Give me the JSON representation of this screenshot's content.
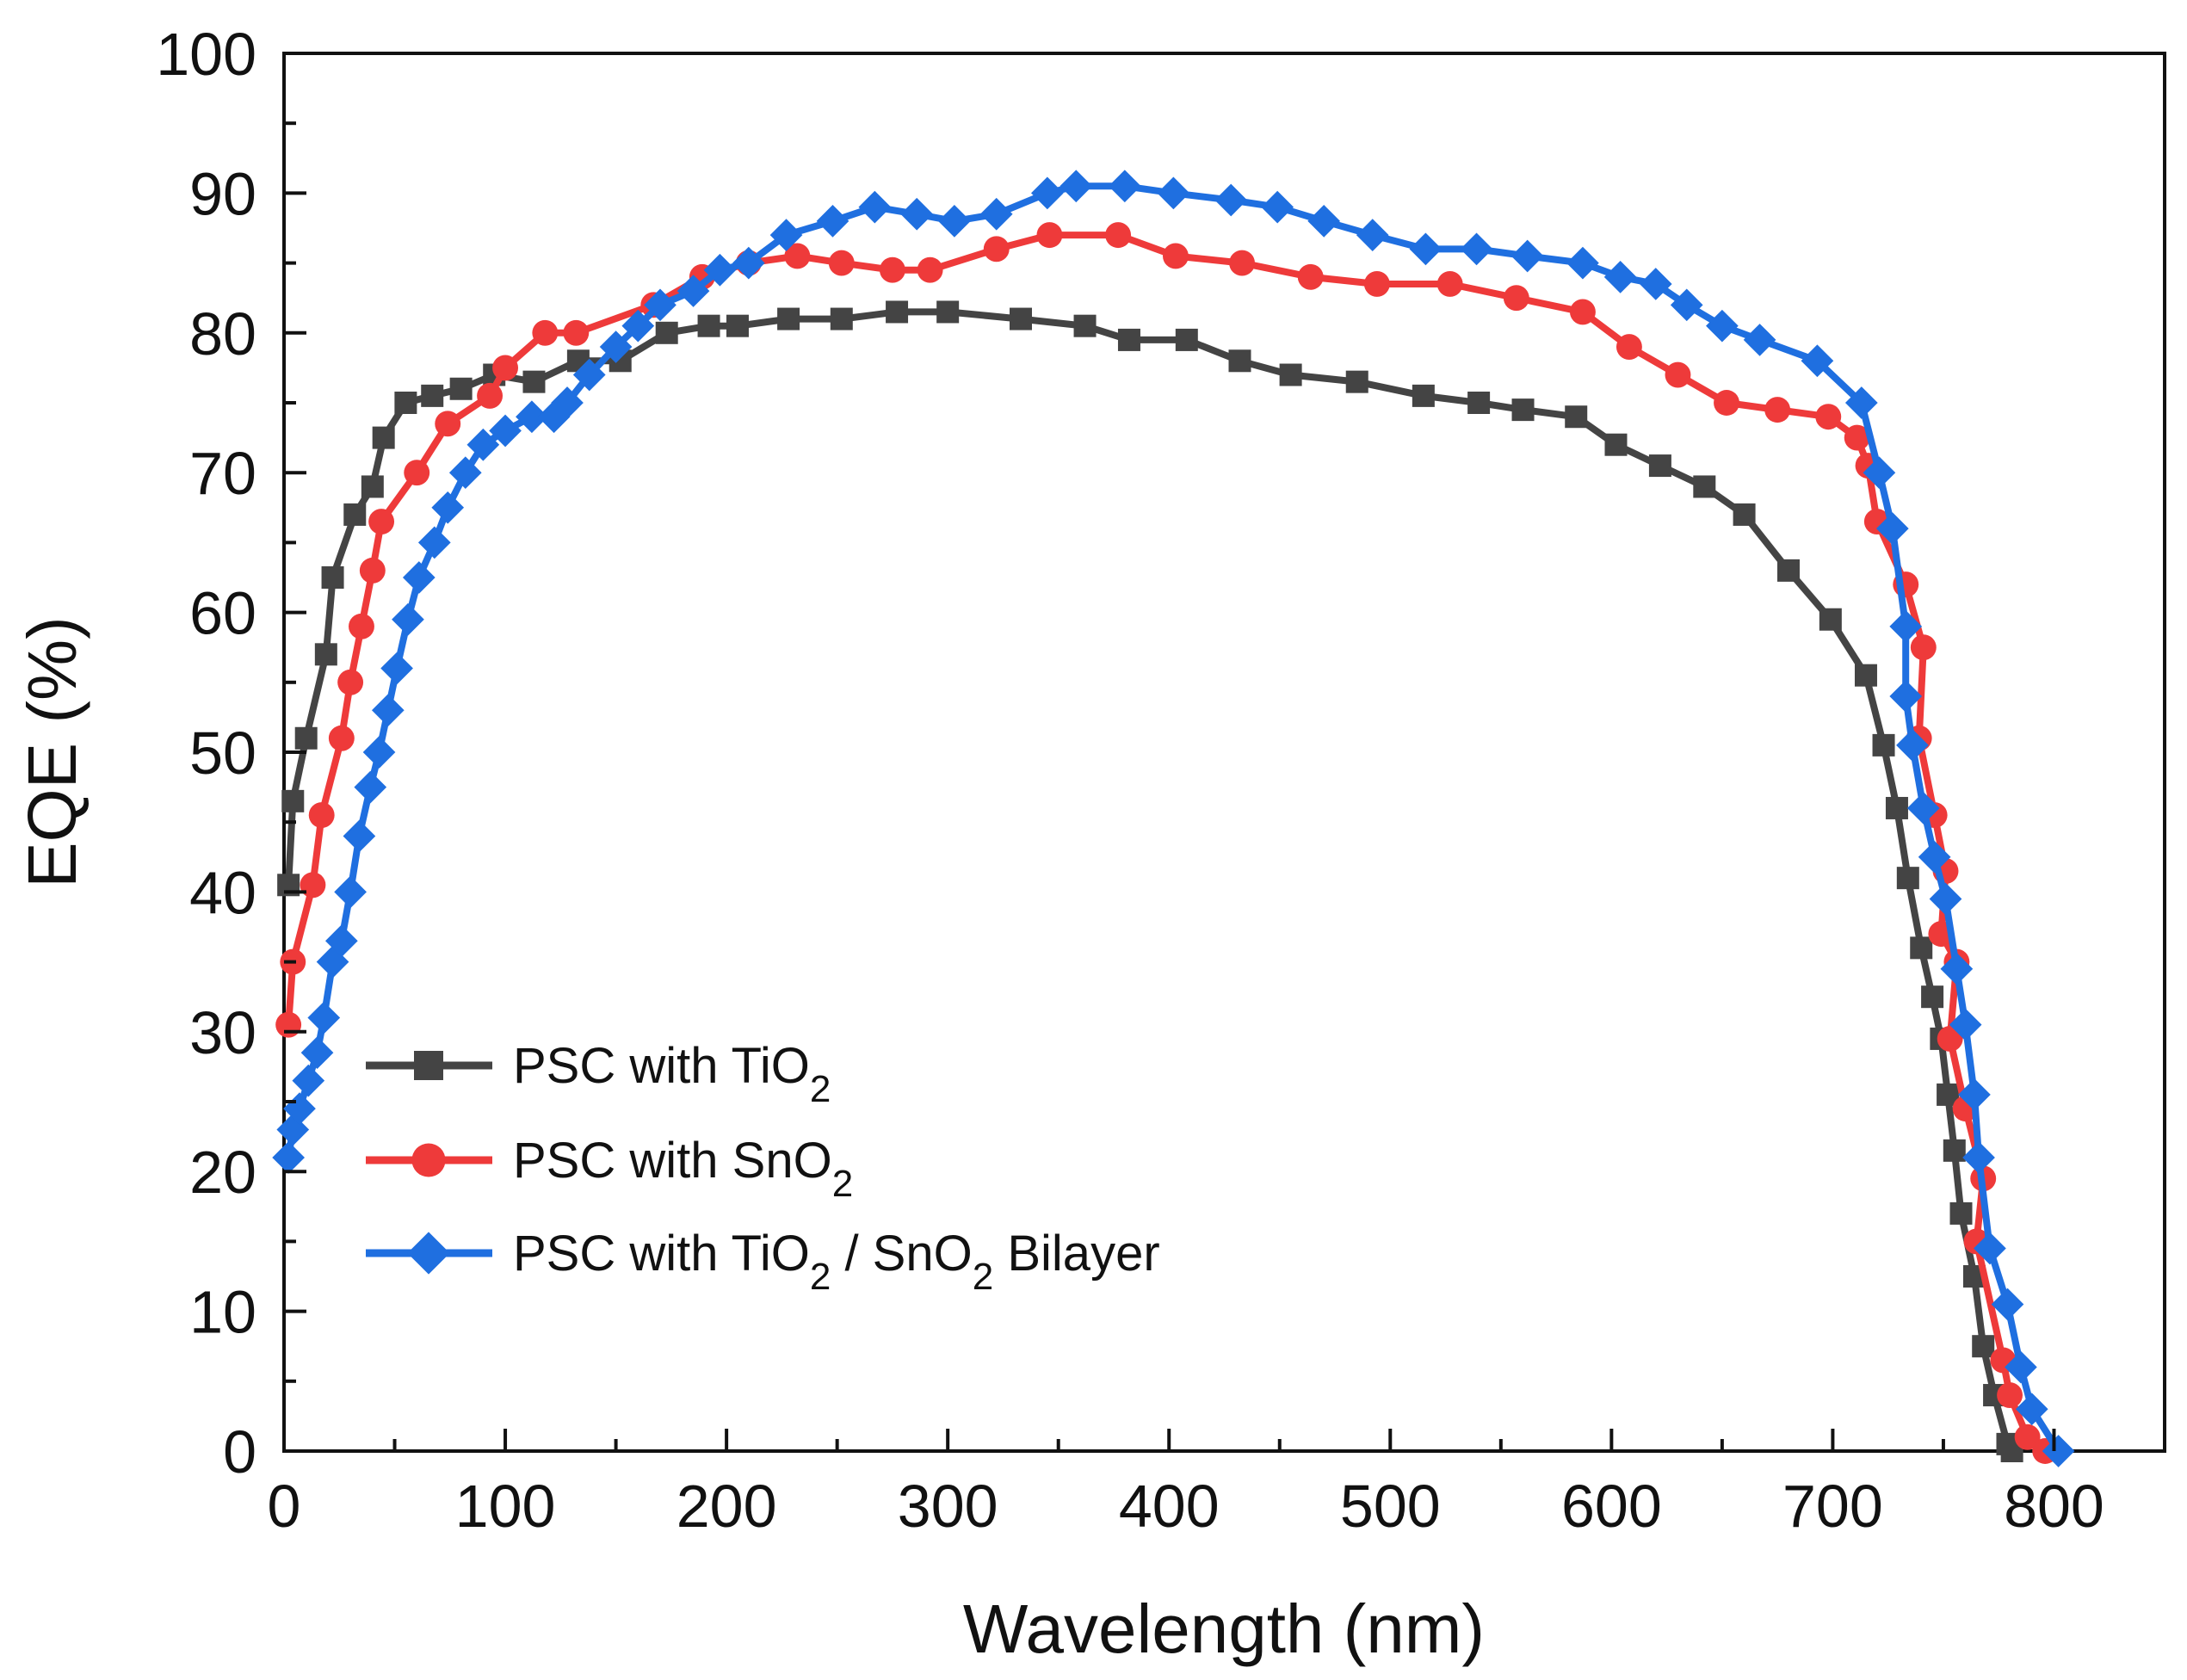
{
  "chart_data": {
    "type": "line",
    "xlabel": "Wavelength (nm)",
    "ylabel": "EQE (%)",
    "xlim": [
      0,
      850
    ],
    "ylim": [
      0,
      100
    ],
    "xticks": [
      0,
      100,
      200,
      300,
      400,
      500,
      600,
      700,
      800
    ],
    "yticks": [
      0,
      10,
      20,
      30,
      40,
      50,
      60,
      70,
      80,
      90,
      100
    ],
    "x_minor_step": 50,
    "y_minor_step": 5,
    "grid": false,
    "legend_position": "bottom-left",
    "series": [
      {
        "legend_text": "PSC with TiO",
        "legend_parts": [
          {
            "text": "PSC with TiO",
            "sub": false
          },
          {
            "text": "2",
            "sub": true
          }
        ],
        "marker": "square",
        "color": "#444444",
        "points": [
          [
            2,
            40.5
          ],
          [
            4,
            46.5
          ],
          [
            10,
            51
          ],
          [
            19,
            57
          ],
          [
            22,
            62.5
          ],
          [
            32,
            67
          ],
          [
            40,
            69
          ],
          [
            45,
            72.5
          ],
          [
            55,
            75
          ],
          [
            67,
            75.5
          ],
          [
            80,
            76
          ],
          [
            95,
            77
          ],
          [
            113,
            76.5
          ],
          [
            133,
            78
          ],
          [
            152,
            78
          ],
          [
            173,
            80
          ],
          [
            192,
            80.5
          ],
          [
            205,
            80.5
          ],
          [
            228,
            81
          ],
          [
            252,
            81
          ],
          [
            277,
            81.5
          ],
          [
            300,
            81.5
          ],
          [
            333,
            81
          ],
          [
            362,
            80.5
          ],
          [
            382,
            79.5
          ],
          [
            408,
            79.5
          ],
          [
            432,
            78
          ],
          [
            455,
            77
          ],
          [
            485,
            76.5
          ],
          [
            515,
            75.5
          ],
          [
            540,
            75
          ],
          [
            560,
            74.5
          ],
          [
            584,
            74
          ],
          [
            602,
            72
          ],
          [
            622,
            70.5
          ],
          [
            642,
            69
          ],
          [
            660,
            67
          ],
          [
            680,
            63
          ],
          [
            699,
            59.5
          ],
          [
            715,
            55.5
          ],
          [
            723,
            50.5
          ],
          [
            729,
            46
          ],
          [
            734,
            41
          ],
          [
            740,
            36
          ],
          [
            745,
            32.5
          ],
          [
            749,
            29.5
          ],
          [
            752,
            25.5
          ],
          [
            755,
            21.5
          ],
          [
            758,
            17
          ],
          [
            764,
            12.5
          ],
          [
            768,
            7.5
          ],
          [
            773,
            4
          ],
          [
            779,
            0.5
          ],
          [
            781,
            0
          ]
        ]
      },
      {
        "legend_text": "PSC with SnO",
        "legend_parts": [
          {
            "text": "PSC with SnO",
            "sub": false
          },
          {
            "text": "2",
            "sub": true
          }
        ],
        "marker": "circle",
        "color": "#ee3a3a",
        "points": [
          [
            2,
            30.5
          ],
          [
            4,
            35
          ],
          [
            13,
            40.5
          ],
          [
            17,
            45.5
          ],
          [
            26,
            51
          ],
          [
            30,
            55
          ],
          [
            35,
            59
          ],
          [
            40,
            63
          ],
          [
            44,
            66.5
          ],
          [
            60,
            70
          ],
          [
            74,
            73.5
          ],
          [
            93,
            75.5
          ],
          [
            100,
            77.5
          ],
          [
            118,
            80
          ],
          [
            132,
            80
          ],
          [
            167,
            82
          ],
          [
            189,
            84
          ],
          [
            210,
            85
          ],
          [
            232,
            85.5
          ],
          [
            252,
            85
          ],
          [
            275,
            84.5
          ],
          [
            292,
            84.5
          ],
          [
            322,
            86
          ],
          [
            346,
            87
          ],
          [
            377,
            87
          ],
          [
            403,
            85.5
          ],
          [
            433,
            85
          ],
          [
            464,
            84
          ],
          [
            494,
            83.5
          ],
          [
            527,
            83.5
          ],
          [
            557,
            82.5
          ],
          [
            587,
            81.5
          ],
          [
            608,
            79
          ],
          [
            630,
            77
          ],
          [
            652,
            75
          ],
          [
            675,
            74.5
          ],
          [
            698,
            74
          ],
          [
            711,
            72.5
          ],
          [
            716,
            70.5
          ],
          [
            720,
            66.5
          ],
          [
            733,
            62
          ],
          [
            741,
            57.5
          ],
          [
            739,
            51
          ],
          [
            746,
            45.5
          ],
          [
            751,
            41.5
          ],
          [
            749,
            37
          ],
          [
            756,
            35
          ],
          [
            753,
            29.5
          ],
          [
            760,
            24.5
          ],
          [
            768,
            19.5
          ],
          [
            765,
            15
          ],
          [
            777,
            6.5
          ],
          [
            780,
            4
          ],
          [
            788,
            1
          ],
          [
            796,
            0
          ]
        ]
      },
      {
        "legend_text": "PSC with TiO / SnO Bilayer",
        "legend_parts": [
          {
            "text": "PSC with TiO",
            "sub": false
          },
          {
            "text": "2",
            "sub": true
          },
          {
            "text": " / SnO",
            "sub": false
          },
          {
            "text": "2",
            "sub": true
          },
          {
            "text": " Bilayer",
            "sub": false
          }
        ],
        "marker": "diamond",
        "color": "#1f6fe0",
        "points": [
          [
            2,
            21
          ],
          [
            4,
            23
          ],
          [
            7,
            24.5
          ],
          [
            11,
            26.5
          ],
          [
            15,
            28.5
          ],
          [
            18,
            31
          ],
          [
            22,
            35
          ],
          [
            26,
            36.5
          ],
          [
            30,
            40
          ],
          [
            34,
            44
          ],
          [
            39,
            47.5
          ],
          [
            43,
            50
          ],
          [
            47,
            53
          ],
          [
            51,
            56
          ],
          [
            56,
            59.5
          ],
          [
            61,
            62.5
          ],
          [
            68,
            65
          ],
          [
            74,
            67.5
          ],
          [
            82,
            70
          ],
          [
            90,
            72
          ],
          [
            100,
            73
          ],
          [
            112,
            74
          ],
          [
            122,
            74
          ],
          [
            128,
            75
          ],
          [
            138,
            77
          ],
          [
            150,
            79
          ],
          [
            160,
            80.5
          ],
          [
            170,
            82
          ],
          [
            185,
            83
          ],
          [
            197,
            84.5
          ],
          [
            210,
            85
          ],
          [
            227,
            87
          ],
          [
            248,
            88
          ],
          [
            267,
            89
          ],
          [
            286,
            88.5
          ],
          [
            303,
            88
          ],
          [
            322,
            88.5
          ],
          [
            345,
            90
          ],
          [
            358,
            90.5
          ],
          [
            380,
            90.5
          ],
          [
            402,
            90
          ],
          [
            428,
            89.5
          ],
          [
            449,
            89
          ],
          [
            470,
            88
          ],
          [
            492,
            87
          ],
          [
            516,
            86
          ],
          [
            539,
            86
          ],
          [
            562,
            85.5
          ],
          [
            587,
            85
          ],
          [
            604,
            84
          ],
          [
            620,
            83.5
          ],
          [
            634,
            82
          ],
          [
            650,
            80.5
          ],
          [
            667,
            79.5
          ],
          [
            693,
            78
          ],
          [
            713,
            75
          ],
          [
            721,
            70
          ],
          [
            727,
            66
          ],
          [
            733,
            59
          ],
          [
            733,
            54
          ],
          [
            736,
            50.5
          ],
          [
            741,
            46
          ],
          [
            746,
            42.5
          ],
          [
            751,
            39.5
          ],
          [
            756,
            34.5
          ],
          [
            760,
            30.5
          ],
          [
            764,
            25.5
          ],
          [
            766,
            21
          ],
          [
            771,
            14.5
          ],
          [
            779,
            10.5
          ],
          [
            785,
            6
          ],
          [
            790,
            3
          ],
          [
            802,
            0
          ]
        ]
      }
    ]
  }
}
